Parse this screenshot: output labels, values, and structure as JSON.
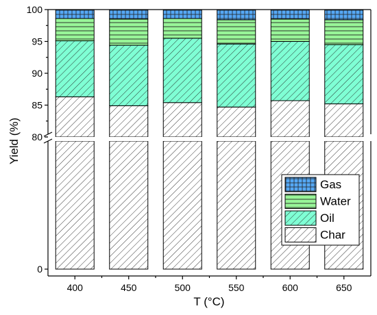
{
  "chart_data": {
    "type": "bar",
    "stacked": true,
    "xlabel": "T (°C)",
    "ylabel": "Yield (%)",
    "categories": [
      "400",
      "450",
      "500",
      "550",
      "600",
      "650"
    ],
    "series": [
      {
        "name": "Char",
        "values": [
          86.3,
          84.9,
          85.4,
          84.7,
          85.7,
          85.2
        ],
        "fill": "#ffffff",
        "hatch": "diagonal"
      },
      {
        "name": "Oil",
        "values": [
          8.8,
          9.5,
          10.1,
          9.9,
          9.3,
          9.3
        ],
        "fill": "#7fffd4",
        "hatch": "diagonal"
      },
      {
        "name": "Water",
        "values": [
          3.5,
          4.1,
          3.1,
          3.8,
          3.5,
          3.9
        ],
        "fill": "#98f598",
        "hatch": "horizontal"
      },
      {
        "name": "Gas",
        "values": [
          1.4,
          1.5,
          1.4,
          1.6,
          1.5,
          1.6
        ],
        "fill": "#55a8f5",
        "hatch": "grid"
      }
    ],
    "y_axis": {
      "broken": true,
      "lower_ticks": [
        0,
        80
      ],
      "upper_range": [
        80,
        100
      ],
      "upper_ticks": [
        80,
        85,
        90,
        95,
        100
      ]
    },
    "legend": {
      "position": "bottom-right",
      "order": [
        "Gas",
        "Water",
        "Oil",
        "Char"
      ]
    }
  }
}
